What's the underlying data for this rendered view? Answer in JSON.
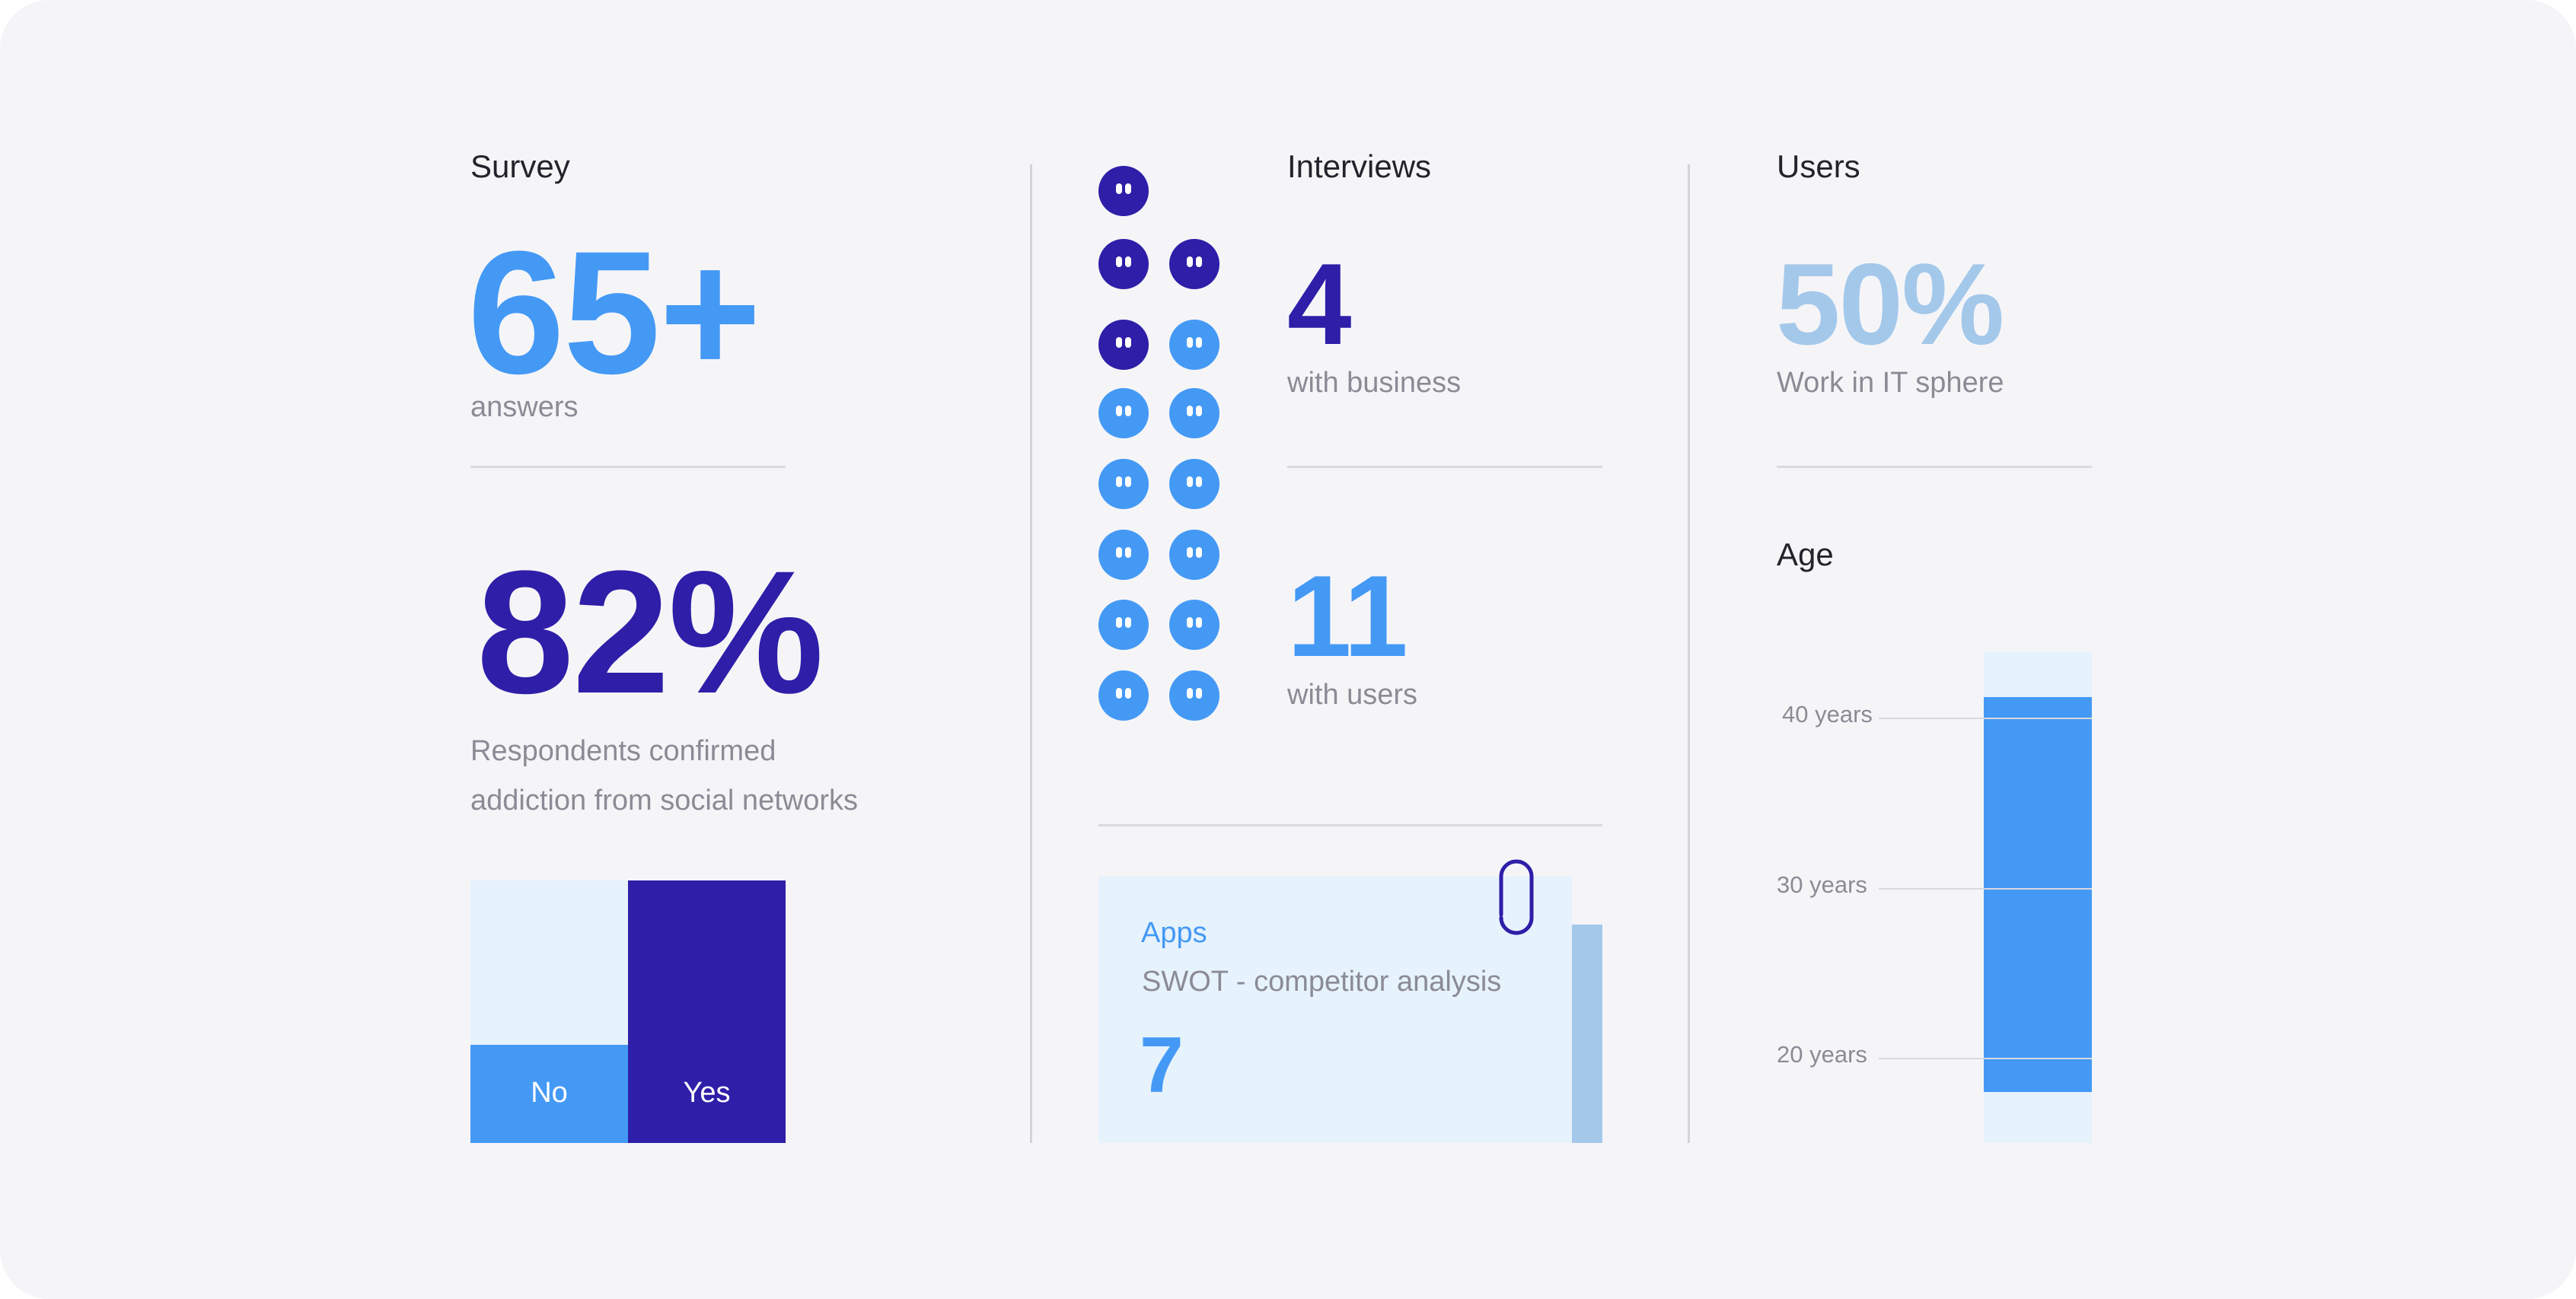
{
  "survey": {
    "heading": "Survey",
    "answers_value": "65+",
    "answers_caption": "answers",
    "addiction_value": "82%",
    "addiction_caption_line1": "Respondents confirmed",
    "addiction_caption_line2": "addiction from social networks",
    "chart": {
      "no_label": "No",
      "yes_label": "Yes",
      "no_share": 0.375,
      "yes_share": 1.0
    }
  },
  "interviews": {
    "heading": "Interviews",
    "business_value": "4",
    "business_caption": "with business",
    "users_value": "11",
    "users_caption": "with users",
    "business_count": 4,
    "users_count": 11
  },
  "apps": {
    "label": "Apps",
    "title": "SWOT - competitor analysis",
    "value": "7"
  },
  "users": {
    "heading": "Users",
    "it_value": "50%",
    "it_caption": "Work in IT sphere",
    "age_heading": "Age"
  },
  "chart_data": {
    "type": "bar",
    "title": "Age",
    "ticks": [
      "40 years",
      "30 years",
      "20 years"
    ],
    "tick_values": [
      40,
      30,
      20
    ],
    "range": [
      18,
      41.2
    ],
    "axis_range": [
      15,
      43.9
    ]
  },
  "colors": {
    "blue": "#4499f5",
    "indigo": "#2e1ea8",
    "pale_blue": "#a4c8ea",
    "light_bg": "#e6f2fc"
  }
}
